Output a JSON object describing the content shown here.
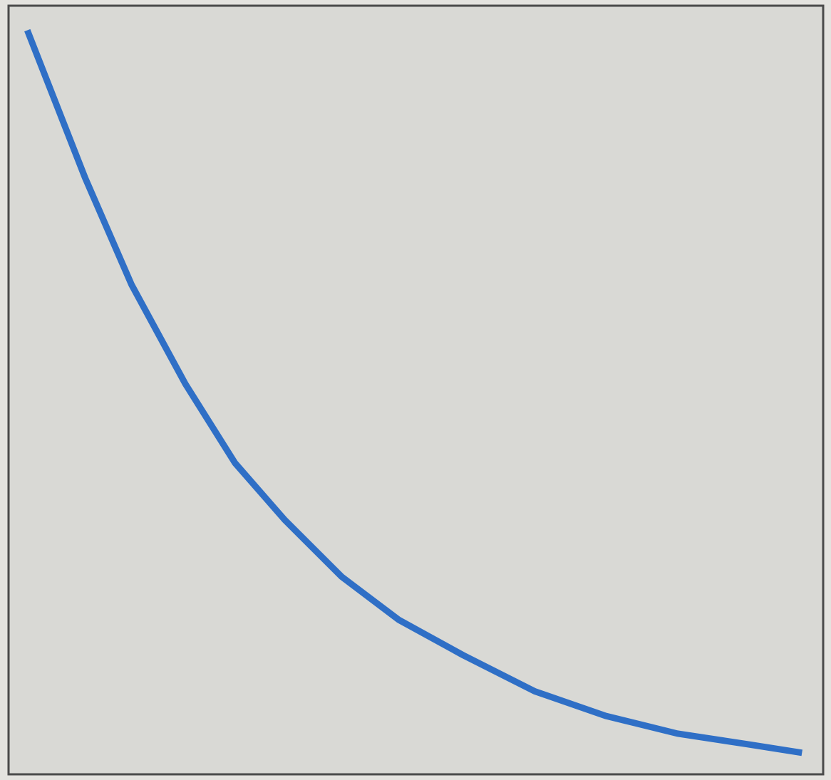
{
  "chart_data": {
    "type": "line",
    "x": [
      0.023,
      0.094,
      0.151,
      0.217,
      0.278,
      0.339,
      0.409,
      0.479,
      0.558,
      0.646,
      0.733,
      0.821,
      0.908,
      0.974
    ],
    "series": [
      {
        "color": "#2f6fc6",
        "values": [
          0.968,
          0.776,
          0.637,
          0.508,
          0.405,
          0.331,
          0.257,
          0.201,
          0.155,
          0.108,
          0.076,
          0.053,
          0.039,
          0.028
        ]
      }
    ],
    "xlim": [
      0,
      1
    ],
    "ylim": [
      0,
      1
    ],
    "grid": false
  }
}
